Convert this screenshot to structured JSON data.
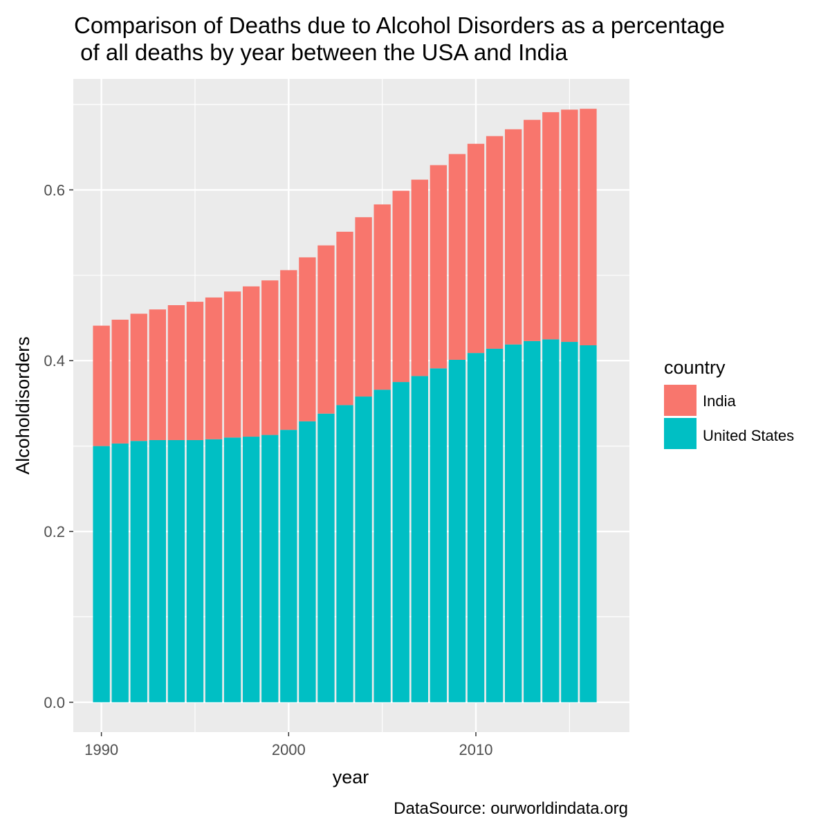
{
  "chart_data": {
    "type": "bar",
    "stacked": true,
    "title": [
      "Comparison of Deaths due to Alcohol Disorders as a percentage",
      " of all deaths by year between the USA and India"
    ],
    "xlabel": "year",
    "ylabel": "Alcoholdisorders",
    "caption": "DataSource: ourworldindata.org",
    "xlim": [
      1988.5,
      2018.2
    ],
    "ylim": [
      -0.035,
      0.73
    ],
    "x_ticks": [
      1990,
      2000,
      2010
    ],
    "y_ticks": [
      0.0,
      0.2,
      0.4,
      0.6
    ],
    "y_tick_labels": [
      "0.0",
      "0.2",
      "0.4",
      "0.6"
    ],
    "x": [
      1990,
      1991,
      1992,
      1993,
      1994,
      1995,
      1996,
      1997,
      1998,
      1999,
      2000,
      2001,
      2002,
      2003,
      2004,
      2005,
      2006,
      2007,
      2008,
      2009,
      2010,
      2011,
      2012,
      2013,
      2014,
      2015,
      2016
    ],
    "series": [
      {
        "name": "United States",
        "color": "#00BFC4",
        "values": [
          0.3,
          0.303,
          0.306,
          0.307,
          0.307,
          0.307,
          0.308,
          0.31,
          0.311,
          0.313,
          0.319,
          0.329,
          0.338,
          0.348,
          0.358,
          0.366,
          0.375,
          0.382,
          0.391,
          0.401,
          0.409,
          0.414,
          0.419,
          0.423,
          0.425,
          0.422,
          0.418
        ]
      },
      {
        "name": "India",
        "color": "#F8766D",
        "values": [
          0.141,
          0.145,
          0.149,
          0.153,
          0.158,
          0.162,
          0.166,
          0.171,
          0.176,
          0.181,
          0.187,
          0.192,
          0.197,
          0.203,
          0.21,
          0.217,
          0.224,
          0.23,
          0.238,
          0.241,
          0.245,
          0.249,
          0.252,
          0.259,
          0.266,
          0.272,
          0.277
        ]
      }
    ],
    "legend": {
      "title": "country",
      "position": "right",
      "items": [
        {
          "label": "India",
          "color": "#F8766D"
        },
        {
          "label": "United States",
          "color": "#00BFC4"
        }
      ]
    },
    "panel_background": "#EBEBEB",
    "grid": true,
    "grid_color": "#ffffff"
  }
}
